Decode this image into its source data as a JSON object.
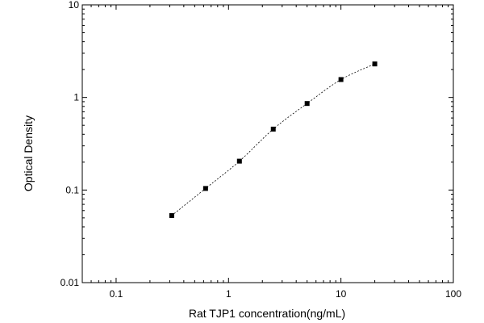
{
  "chart_data": {
    "type": "scatter",
    "xlabel": "Rat TJP1 concentration(ng/mL)",
    "ylabel": "Optical Density",
    "x_scale": "log",
    "y_scale": "log",
    "xlim": [
      0.05,
      100
    ],
    "ylim": [
      0.01,
      10
    ],
    "x_ticks": [
      "0.1",
      "1",
      "10",
      "100"
    ],
    "y_ticks": [
      "0.01",
      "0.1",
      "1",
      "10"
    ],
    "grid": false,
    "marker": "square",
    "fit_line": "dashed curve through points",
    "series": [
      {
        "x": [
          0.3125,
          0.625,
          1.25,
          2.5,
          5,
          10,
          20
        ],
        "y": [
          0.053,
          0.104,
          0.205,
          0.455,
          0.86,
          1.56,
          2.3
        ]
      }
    ],
    "colors": {
      "marks": "#000000",
      "axes": "#000000",
      "background": "#ffffff"
    }
  }
}
